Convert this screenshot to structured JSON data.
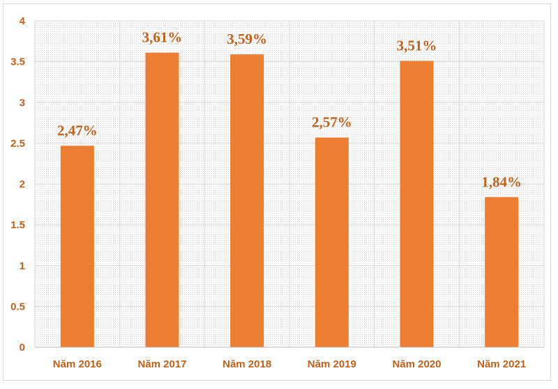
{
  "colors": {
    "bar": "#ed7d31",
    "label": "#c0601a",
    "grid": "#d9d9d9"
  },
  "chart_data": {
    "type": "bar",
    "title": "",
    "xlabel": "",
    "ylabel": "",
    "categories": [
      "Năm 2016",
      "Năm 2017",
      "Năm 2018",
      "Năm 2019",
      "Năm 2020",
      "Năm 2021"
    ],
    "values": [
      2.47,
      3.61,
      3.59,
      2.57,
      3.51,
      1.84
    ],
    "data_labels": [
      "2,47%",
      "3,61%",
      "3,59%",
      "2,57%",
      "3,51%",
      "1,84%"
    ],
    "ylim": [
      0,
      4
    ],
    "yticks": [
      0,
      0.5,
      1,
      1.5,
      2,
      2.5,
      3,
      3.5,
      4
    ],
    "ytick_labels": [
      "0",
      "0.5",
      "1",
      "1.5",
      "2",
      "2.5",
      "3",
      "3.5",
      "4"
    ],
    "grid": true,
    "legend": "none"
  }
}
